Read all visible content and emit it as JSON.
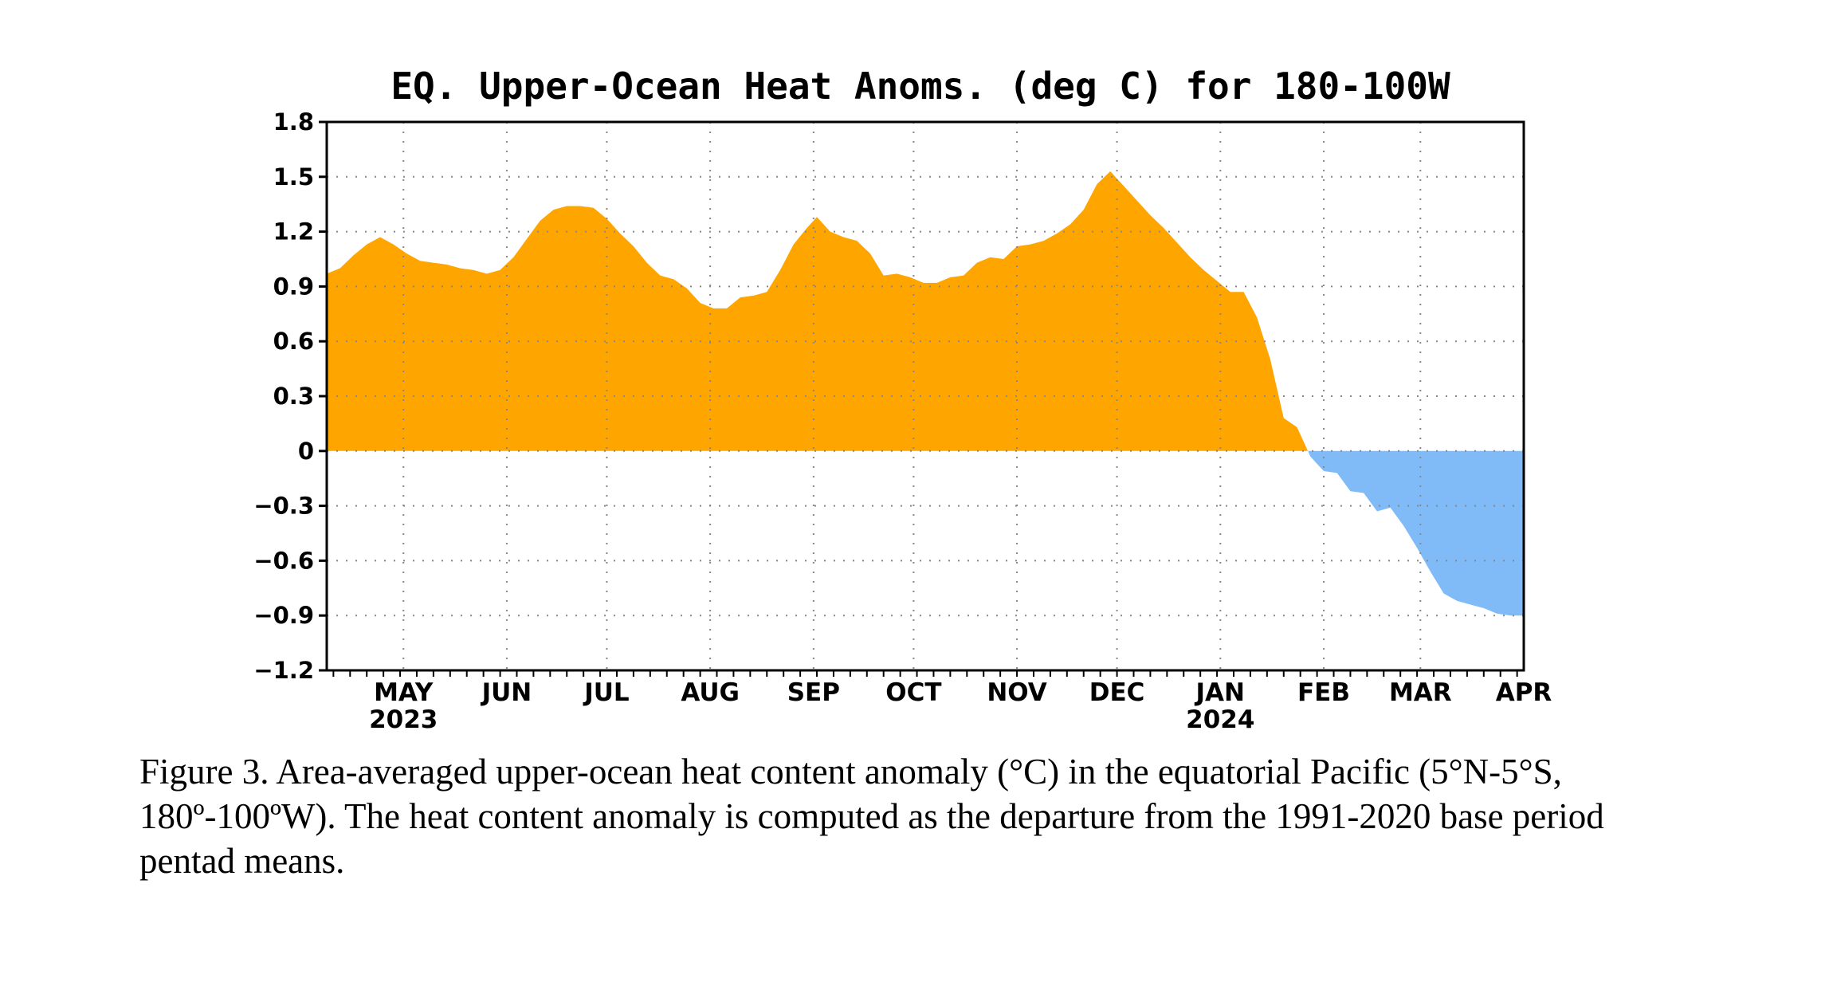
{
  "chart_data": {
    "type": "area",
    "title": "EQ. Upper-Ocean Heat Anoms. (deg C) for 180-100W",
    "xlabel": "",
    "ylabel": "",
    "ylim": [
      -1.2,
      1.8
    ],
    "yticks": [
      {
        "value": 1.8,
        "label": "1.8"
      },
      {
        "value": 1.5,
        "label": "1.5"
      },
      {
        "value": 1.2,
        "label": "1.2"
      },
      {
        "value": 0.9,
        "label": "0.9"
      },
      {
        "value": 0.6,
        "label": "0.6"
      },
      {
        "value": 0.3,
        "label": "0.3"
      },
      {
        "value": 0,
        "label": "0"
      },
      {
        "value": -0.3,
        "label": "−0.3"
      },
      {
        "value": -0.6,
        "label": "−0.6"
      },
      {
        "value": -0.9,
        "label": "−0.9"
      },
      {
        "value": -1.2,
        "label": "−1.2"
      }
    ],
    "xlim": [
      "2023-04-08",
      "2024-04-01"
    ],
    "xticks": [
      {
        "date": "2023-05-01",
        "label": "MAY",
        "year": "2023"
      },
      {
        "date": "2023-06-01",
        "label": "JUN",
        "year": ""
      },
      {
        "date": "2023-07-01",
        "label": "JUL",
        "year": ""
      },
      {
        "date": "2023-08-01",
        "label": "AUG",
        "year": ""
      },
      {
        "date": "2023-09-01",
        "label": "SEP",
        "year": ""
      },
      {
        "date": "2023-10-01",
        "label": "OCT",
        "year": ""
      },
      {
        "date": "2023-11-01",
        "label": "NOV",
        "year": ""
      },
      {
        "date": "2023-12-01",
        "label": "DEC",
        "year": ""
      },
      {
        "date": "2024-01-01",
        "label": "JAN",
        "year": "2024"
      },
      {
        "date": "2024-02-01",
        "label": "FEB",
        "year": ""
      },
      {
        "date": "2024-03-01",
        "label": "MAR",
        "year": ""
      },
      {
        "date": "2024-04-01",
        "label": "APR",
        "year": ""
      }
    ],
    "grid": true,
    "positive_color": "#ffa500",
    "negative_color": "#80bbf7",
    "series": [
      {
        "values": [
          [
            "2023-04-08",
            0.97
          ],
          [
            "2023-04-12",
            1.0
          ],
          [
            "2023-04-16",
            1.07
          ],
          [
            "2023-04-20",
            1.13
          ],
          [
            "2023-04-24",
            1.17
          ],
          [
            "2023-04-28",
            1.13
          ],
          [
            "2023-05-02",
            1.08
          ],
          [
            "2023-05-06",
            1.04
          ],
          [
            "2023-05-10",
            1.03
          ],
          [
            "2023-05-14",
            1.02
          ],
          [
            "2023-05-18",
            1.0
          ],
          [
            "2023-05-22",
            0.99
          ],
          [
            "2023-05-26",
            0.97
          ],
          [
            "2023-05-30",
            0.99
          ],
          [
            "2023-06-03",
            1.06
          ],
          [
            "2023-06-07",
            1.16
          ],
          [
            "2023-06-11",
            1.26
          ],
          [
            "2023-06-15",
            1.32
          ],
          [
            "2023-06-19",
            1.34
          ],
          [
            "2023-06-23",
            1.34
          ],
          [
            "2023-06-27",
            1.33
          ],
          [
            "2023-07-01",
            1.27
          ],
          [
            "2023-07-05",
            1.19
          ],
          [
            "2023-07-09",
            1.12
          ],
          [
            "2023-07-13",
            1.03
          ],
          [
            "2023-07-17",
            0.96
          ],
          [
            "2023-07-21",
            0.94
          ],
          [
            "2023-07-25",
            0.89
          ],
          [
            "2023-07-29",
            0.81
          ],
          [
            "2023-08-02",
            0.78
          ],
          [
            "2023-08-06",
            0.78
          ],
          [
            "2023-08-10",
            0.84
          ],
          [
            "2023-08-14",
            0.85
          ],
          [
            "2023-08-18",
            0.87
          ],
          [
            "2023-08-22",
            0.99
          ],
          [
            "2023-08-26",
            1.13
          ],
          [
            "2023-08-30",
            1.22
          ],
          [
            "2023-09-02",
            1.28
          ],
          [
            "2023-09-06",
            1.2
          ],
          [
            "2023-09-10",
            1.17
          ],
          [
            "2023-09-14",
            1.15
          ],
          [
            "2023-09-18",
            1.08
          ],
          [
            "2023-09-22",
            0.96
          ],
          [
            "2023-09-26",
            0.97
          ],
          [
            "2023-09-30",
            0.95
          ],
          [
            "2023-10-04",
            0.92
          ],
          [
            "2023-10-08",
            0.92
          ],
          [
            "2023-10-12",
            0.95
          ],
          [
            "2023-10-16",
            0.96
          ],
          [
            "2023-10-20",
            1.03
          ],
          [
            "2023-10-24",
            1.06
          ],
          [
            "2023-10-28",
            1.05
          ],
          [
            "2023-11-01",
            1.12
          ],
          [
            "2023-11-05",
            1.13
          ],
          [
            "2023-11-09",
            1.15
          ],
          [
            "2023-11-13",
            1.19
          ],
          [
            "2023-11-17",
            1.24
          ],
          [
            "2023-11-21",
            1.32
          ],
          [
            "2023-11-25",
            1.46
          ],
          [
            "2023-11-29",
            1.53
          ],
          [
            "2023-12-03",
            1.45
          ],
          [
            "2023-12-07",
            1.37
          ],
          [
            "2023-12-11",
            1.29
          ],
          [
            "2023-12-15",
            1.22
          ],
          [
            "2023-12-19",
            1.14
          ],
          [
            "2023-12-23",
            1.06
          ],
          [
            "2023-12-27",
            0.99
          ],
          [
            "2023-12-31",
            0.93
          ],
          [
            "2024-01-04",
            0.87
          ],
          [
            "2024-01-08",
            0.87
          ],
          [
            "2024-01-12",
            0.73
          ],
          [
            "2024-01-16",
            0.5
          ],
          [
            "2024-01-20",
            0.18
          ],
          [
            "2024-01-24",
            0.13
          ],
          [
            "2024-01-28",
            -0.03
          ],
          [
            "2024-02-01",
            -0.11
          ],
          [
            "2024-02-05",
            -0.12
          ],
          [
            "2024-02-09",
            -0.22
          ],
          [
            "2024-02-13",
            -0.23
          ],
          [
            "2024-02-17",
            -0.33
          ],
          [
            "2024-02-21",
            -0.31
          ],
          [
            "2024-02-25",
            -0.41
          ],
          [
            "2024-02-29",
            -0.53
          ],
          [
            "2024-03-04",
            -0.66
          ],
          [
            "2024-03-08",
            -0.78
          ],
          [
            "2024-03-12",
            -0.82
          ],
          [
            "2024-03-16",
            -0.84
          ],
          [
            "2024-03-20",
            -0.86
          ],
          [
            "2024-03-24",
            -0.89
          ],
          [
            "2024-03-28",
            -0.9
          ],
          [
            "2024-04-01",
            -0.9
          ]
        ]
      }
    ]
  },
  "caption": "Figure 3. Area-averaged upper-ocean heat content anomaly (°C) in the equatorial Pacific (5°N-5°S, 180º-100ºW). The heat content anomaly is computed as the departure from the 1991-2020 base period pentad means."
}
